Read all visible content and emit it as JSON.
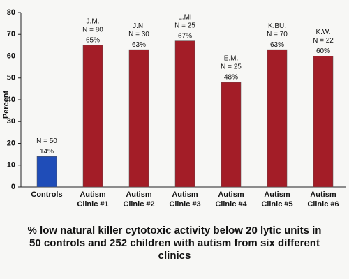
{
  "chart_data": {
    "type": "bar",
    "title": "% low natural killer cytotoxic activity below 20 lytic units in 50 controls and 252 children with autism from six different clinics",
    "y_label": "Percent",
    "categories": [
      "Controls",
      "Autism Clinic #1",
      "Autism Clinic #2",
      "Autism Clinic #3",
      "Autism Clinic #4",
      "Autism Clinic #5",
      "Autism Clinic #6"
    ],
    "values": [
      14,
      65,
      63,
      67,
      48,
      63,
      60
    ],
    "value_labels": [
      "14%",
      "65%",
      "63%",
      "67%",
      "48%",
      "63%",
      "60%"
    ],
    "clinic_codes": [
      null,
      "J.M.",
      "J.N.",
      "L.MI",
      "E.M.",
      "K.BU.",
      "K.W."
    ],
    "sample_sizes": [
      "N = 50",
      "N = 80",
      "N = 30",
      "N = 25",
      "N = 25",
      "N = 70",
      "N = 22"
    ],
    "colors": [
      "#1f4db8",
      "#a31d27",
      "#a31d27",
      "#a31d27",
      "#a31d27",
      "#a31d27",
      "#a31d27"
    ],
    "ylim": [
      0,
      80
    ],
    "yticks": [
      0,
      10,
      20,
      30,
      40,
      50,
      60,
      70,
      80
    ],
    "grid": false
  }
}
